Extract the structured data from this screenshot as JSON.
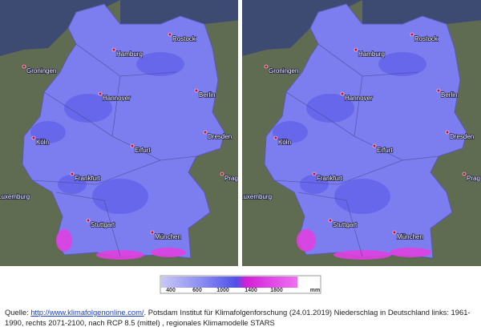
{
  "cities": [
    "Rostock",
    "Hamburg",
    "Groningen",
    "Hannover",
    "Berlin",
    "Köln",
    "Erfurt",
    "Dresden",
    "Frankfurt",
    "Prag",
    "Luxemburg",
    "Stuttgart",
    "München"
  ],
  "legend": {
    "ticks": [
      "400",
      "600",
      "1000",
      "1400",
      "1800"
    ],
    "unit": "mm"
  },
  "caption": {
    "prefix": "Quelle: ",
    "link": "http://www.klimafolgenonline.com/",
    "text": ". Potsdam Institut für Klimafolgenforschung (24.01.2019) Niederschlag in Deutschland links: 1961-1990, rechts 2071-2100, nach RCP 8.5 (mittel) , regionales Klimamodelle STARS"
  }
}
